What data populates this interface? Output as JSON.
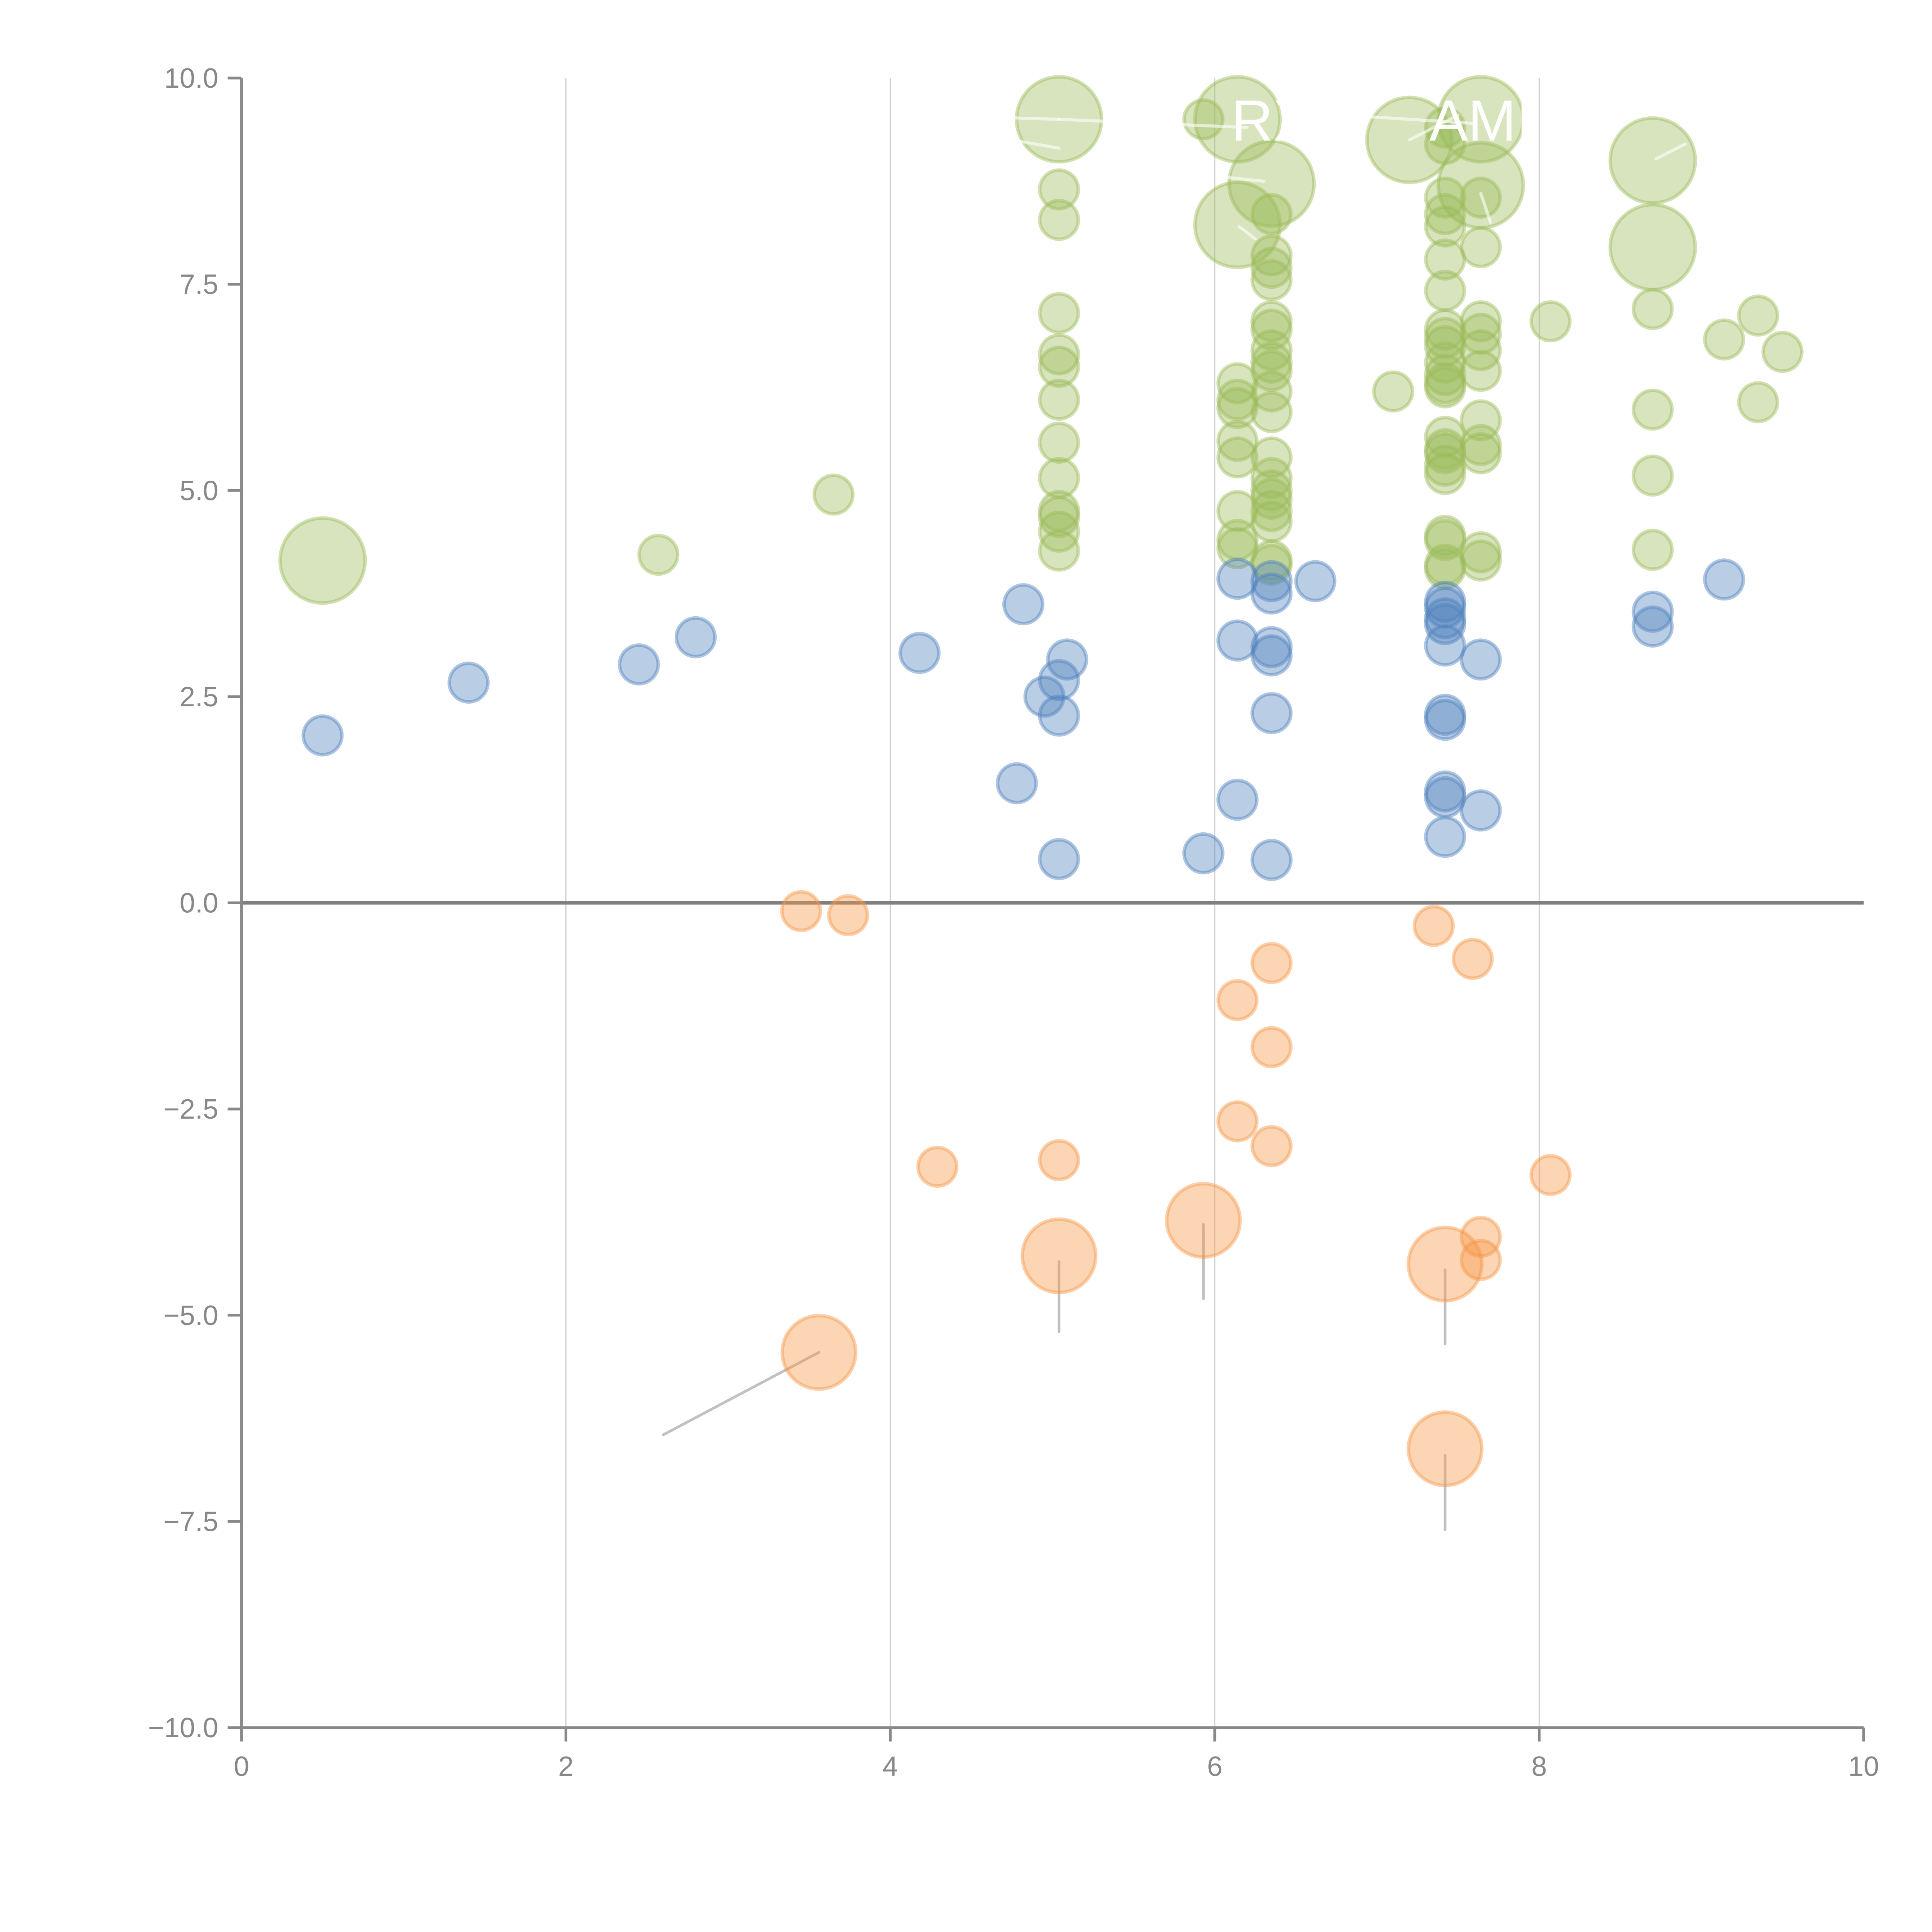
{
  "chart_data": {
    "type": "scatter",
    "title": "",
    "xlabel": "",
    "ylabel": "",
    "xlim": [
      0,
      10
    ],
    "ylim": [
      -10,
      10
    ],
    "grid": "vertical",
    "legend": "none",
    "x_ticks": [
      "0",
      "2",
      "4",
      "6",
      "8",
      "10"
    ],
    "y_ticks": [
      "−10.0",
      "−7.5",
      "−5.0",
      "−2.5",
      "0.0",
      "2.5",
      "5.0",
      "7.5",
      "10.0"
    ],
    "x_tick_values": [
      0,
      2,
      4,
      6,
      8,
      10
    ],
    "y_tick_values": [
      -10,
      -7.5,
      -5,
      -2.5,
      0,
      2.5,
      5,
      7.5,
      10
    ],
    "zero_line": true,
    "series": [
      {
        "name": "green",
        "color": "#9bbb59",
        "points": [
          {
            "x": 0.5,
            "y": 4.15,
            "size": 3
          },
          {
            "x": 2.57,
            "y": 4.22,
            "size": 1
          },
          {
            "x": 3.65,
            "y": 4.95,
            "size": 1
          },
          {
            "x": 5.04,
            "y": 9.5,
            "size": 3
          },
          {
            "x": 5.04,
            "y": 8.65,
            "size": 1
          },
          {
            "x": 5.04,
            "y": 8.28,
            "size": 1
          },
          {
            "x": 5.04,
            "y": 7.15,
            "size": 1
          },
          {
            "x": 5.04,
            "y": 6.65,
            "size": 1
          },
          {
            "x": 5.04,
            "y": 6.5,
            "size": 1
          },
          {
            "x": 5.04,
            "y": 6.1,
            "size": 1
          },
          {
            "x": 5.04,
            "y": 5.58,
            "size": 1
          },
          {
            "x": 5.04,
            "y": 5.15,
            "size": 1
          },
          {
            "x": 5.04,
            "y": 4.75,
            "size": 1
          },
          {
            "x": 5.04,
            "y": 4.68,
            "size": 1
          },
          {
            "x": 5.04,
            "y": 4.5,
            "size": 1
          },
          {
            "x": 5.04,
            "y": 4.27,
            "size": 1
          },
          {
            "x": 5.93,
            "y": 9.5,
            "size": 1
          },
          {
            "x": 6.14,
            "y": 9.5,
            "size": 3
          },
          {
            "x": 6.14,
            "y": 8.22,
            "size": 3
          },
          {
            "x": 6.14,
            "y": 6.3,
            "size": 1
          },
          {
            "x": 6.14,
            "y": 6.1,
            "size": 1
          },
          {
            "x": 6.14,
            "y": 6.0,
            "size": 1
          },
          {
            "x": 6.14,
            "y": 5.6,
            "size": 1
          },
          {
            "x": 6.14,
            "y": 5.4,
            "size": 1
          },
          {
            "x": 6.14,
            "y": 4.75,
            "size": 1
          },
          {
            "x": 6.14,
            "y": 4.4,
            "size": 1
          },
          {
            "x": 6.14,
            "y": 4.3,
            "size": 1
          },
          {
            "x": 6.35,
            "y": 8.72,
            "size": 3
          },
          {
            "x": 6.35,
            "y": 8.35,
            "size": 1
          },
          {
            "x": 6.35,
            "y": 7.85,
            "size": 1
          },
          {
            "x": 6.35,
            "y": 7.7,
            "size": 1
          },
          {
            "x": 6.35,
            "y": 7.55,
            "size": 1
          },
          {
            "x": 6.35,
            "y": 7.05,
            "size": 1
          },
          {
            "x": 6.35,
            "y": 6.95,
            "size": 1
          },
          {
            "x": 6.35,
            "y": 6.7,
            "size": 1
          },
          {
            "x": 6.35,
            "y": 6.55,
            "size": 1
          },
          {
            "x": 6.35,
            "y": 6.45,
            "size": 1
          },
          {
            "x": 6.35,
            "y": 6.2,
            "size": 1
          },
          {
            "x": 6.35,
            "y": 5.95,
            "size": 1
          },
          {
            "x": 6.35,
            "y": 5.4,
            "size": 1
          },
          {
            "x": 6.35,
            "y": 5.15,
            "size": 1
          },
          {
            "x": 6.35,
            "y": 5.0,
            "size": 1
          },
          {
            "x": 6.35,
            "y": 4.9,
            "size": 1
          },
          {
            "x": 6.35,
            "y": 4.75,
            "size": 1
          },
          {
            "x": 6.35,
            "y": 4.62,
            "size": 1
          },
          {
            "x": 6.35,
            "y": 4.15,
            "size": 1
          },
          {
            "x": 6.35,
            "y": 4.1,
            "size": 1
          },
          {
            "x": 7.1,
            "y": 6.2,
            "size": 1
          },
          {
            "x": 7.2,
            "y": 9.25,
            "size": 3
          },
          {
            "x": 7.42,
            "y": 9.4,
            "size": 1
          },
          {
            "x": 7.42,
            "y": 9.2,
            "size": 1
          },
          {
            "x": 7.42,
            "y": 8.55,
            "size": 1
          },
          {
            "x": 7.42,
            "y": 8.35,
            "size": 1
          },
          {
            "x": 7.42,
            "y": 8.2,
            "size": 1
          },
          {
            "x": 7.42,
            "y": 7.8,
            "size": 1
          },
          {
            "x": 7.42,
            "y": 7.42,
            "size": 1
          },
          {
            "x": 7.42,
            "y": 6.95,
            "size": 1
          },
          {
            "x": 7.42,
            "y": 6.85,
            "size": 1
          },
          {
            "x": 7.42,
            "y": 6.75,
            "size": 1
          },
          {
            "x": 7.42,
            "y": 6.55,
            "size": 1
          },
          {
            "x": 7.42,
            "y": 6.4,
            "size": 1
          },
          {
            "x": 7.42,
            "y": 6.3,
            "size": 1
          },
          {
            "x": 7.42,
            "y": 6.25,
            "size": 1
          },
          {
            "x": 7.42,
            "y": 5.65,
            "size": 1
          },
          {
            "x": 7.42,
            "y": 5.5,
            "size": 1
          },
          {
            "x": 7.42,
            "y": 5.45,
            "size": 1
          },
          {
            "x": 7.42,
            "y": 5.3,
            "size": 1
          },
          {
            "x": 7.42,
            "y": 5.2,
            "size": 1
          },
          {
            "x": 7.42,
            "y": 4.45,
            "size": 1
          },
          {
            "x": 7.42,
            "y": 4.4,
            "size": 1
          },
          {
            "x": 7.42,
            "y": 4.1,
            "size": 1
          },
          {
            "x": 7.42,
            "y": 4.05,
            "size": 1
          },
          {
            "x": 7.64,
            "y": 9.5,
            "size": 3
          },
          {
            "x": 7.64,
            "y": 8.7,
            "size": 3
          },
          {
            "x": 7.64,
            "y": 8.55,
            "size": 1
          },
          {
            "x": 7.64,
            "y": 7.95,
            "size": 1
          },
          {
            "x": 7.64,
            "y": 7.05,
            "size": 1
          },
          {
            "x": 7.64,
            "y": 6.9,
            "size": 1
          },
          {
            "x": 7.64,
            "y": 6.7,
            "size": 1
          },
          {
            "x": 7.64,
            "y": 6.45,
            "size": 1
          },
          {
            "x": 7.64,
            "y": 5.85,
            "size": 1
          },
          {
            "x": 7.64,
            "y": 5.55,
            "size": 1
          },
          {
            "x": 7.64,
            "y": 5.45,
            "size": 1
          },
          {
            "x": 7.64,
            "y": 4.25,
            "size": 1
          },
          {
            "x": 7.64,
            "y": 4.15,
            "size": 1
          },
          {
            "x": 8.07,
            "y": 7.05,
            "size": 1
          },
          {
            "x": 8.7,
            "y": 9.0,
            "size": 3
          },
          {
            "x": 8.7,
            "y": 7.95,
            "size": 3
          },
          {
            "x": 8.7,
            "y": 7.2,
            "size": 1
          },
          {
            "x": 8.7,
            "y": 5.98,
            "size": 1
          },
          {
            "x": 8.7,
            "y": 5.18,
            "size": 1
          },
          {
            "x": 8.7,
            "y": 4.28,
            "size": 1
          },
          {
            "x": 9.14,
            "y": 6.83,
            "size": 1
          },
          {
            "x": 9.35,
            "y": 7.12,
            "size": 1
          },
          {
            "x": 9.35,
            "y": 6.07,
            "size": 1
          },
          {
            "x": 9.5,
            "y": 6.68,
            "size": 1
          }
        ]
      },
      {
        "name": "blue",
        "color": "#4f81bd",
        "points": [
          {
            "x": 0.5,
            "y": 2.03,
            "size": 1
          },
          {
            "x": 1.4,
            "y": 2.67,
            "size": 1
          },
          {
            "x": 2.45,
            "y": 2.89,
            "size": 1
          },
          {
            "x": 2.8,
            "y": 3.22,
            "size": 1
          },
          {
            "x": 4.18,
            "y": 3.03,
            "size": 1
          },
          {
            "x": 4.78,
            "y": 1.45,
            "size": 1
          },
          {
            "x": 4.82,
            "y": 3.62,
            "size": 1
          },
          {
            "x": 4.95,
            "y": 2.5,
            "size": 1
          },
          {
            "x": 5.04,
            "y": 2.7,
            "size": 1
          },
          {
            "x": 5.04,
            "y": 2.27,
            "size": 1
          },
          {
            "x": 5.04,
            "y": 0.53,
            "size": 1
          },
          {
            "x": 5.09,
            "y": 2.95,
            "size": 1
          },
          {
            "x": 5.93,
            "y": 0.6,
            "size": 1
          },
          {
            "x": 6.14,
            "y": 3.93,
            "size": 1
          },
          {
            "x": 6.14,
            "y": 3.18,
            "size": 1
          },
          {
            "x": 6.14,
            "y": 1.25,
            "size": 1
          },
          {
            "x": 6.35,
            "y": 3.9,
            "size": 1
          },
          {
            "x": 6.35,
            "y": 3.75,
            "size": 1
          },
          {
            "x": 6.35,
            "y": 3.1,
            "size": 1
          },
          {
            "x": 6.35,
            "y": 3.0,
            "size": 1
          },
          {
            "x": 6.35,
            "y": 2.3,
            "size": 1
          },
          {
            "x": 6.35,
            "y": 0.52,
            "size": 1
          },
          {
            "x": 6.62,
            "y": 3.9,
            "size": 1
          },
          {
            "x": 7.42,
            "y": 3.65,
            "size": 1
          },
          {
            "x": 7.42,
            "y": 3.58,
            "size": 1
          },
          {
            "x": 7.42,
            "y": 3.45,
            "size": 1
          },
          {
            "x": 7.42,
            "y": 3.38,
            "size": 1
          },
          {
            "x": 7.42,
            "y": 3.12,
            "size": 1
          },
          {
            "x": 7.42,
            "y": 2.28,
            "size": 1
          },
          {
            "x": 7.42,
            "y": 2.22,
            "size": 1
          },
          {
            "x": 7.42,
            "y": 1.35,
            "size": 1
          },
          {
            "x": 7.42,
            "y": 1.28,
            "size": 1
          },
          {
            "x": 7.42,
            "y": 0.8,
            "size": 1
          },
          {
            "x": 7.64,
            "y": 2.95,
            "size": 1
          },
          {
            "x": 7.64,
            "y": 1.12,
            "size": 1
          },
          {
            "x": 8.7,
            "y": 3.53,
            "size": 1
          },
          {
            "x": 8.7,
            "y": 3.35,
            "size": 1
          },
          {
            "x": 9.14,
            "y": 3.92,
            "size": 1
          }
        ]
      },
      {
        "name": "orange",
        "color": "#f79646",
        "points": [
          {
            "x": 3.45,
            "y": -0.1,
            "size": 1
          },
          {
            "x": 3.74,
            "y": -0.15,
            "size": 1
          },
          {
            "x": 3.56,
            "y": -5.45,
            "size": 2
          },
          {
            "x": 4.29,
            "y": -3.2,
            "size": 1
          },
          {
            "x": 5.04,
            "y": -3.12,
            "size": 1
          },
          {
            "x": 5.04,
            "y": -4.28,
            "size": 2
          },
          {
            "x": 5.93,
            "y": -3.85,
            "size": 2
          },
          {
            "x": 6.14,
            "y": -1.18,
            "size": 1
          },
          {
            "x": 6.14,
            "y": -2.65,
            "size": 1
          },
          {
            "x": 6.35,
            "y": -0.73,
            "size": 1
          },
          {
            "x": 6.35,
            "y": -1.75,
            "size": 1
          },
          {
            "x": 6.35,
            "y": -2.95,
            "size": 1
          },
          {
            "x": 7.35,
            "y": -0.28,
            "size": 1
          },
          {
            "x": 7.42,
            "y": -4.38,
            "size": 2
          },
          {
            "x": 7.42,
            "y": -6.62,
            "size": 2
          },
          {
            "x": 7.59,
            "y": -0.68,
            "size": 1
          },
          {
            "x": 7.64,
            "y": -4.05,
            "size": 1
          },
          {
            "x": 7.64,
            "y": -4.33,
            "size": 1
          },
          {
            "x": 8.07,
            "y": -3.3,
            "size": 1
          }
        ]
      }
    ],
    "annotations": [
      {
        "text": "RX",
        "x": 5.93,
        "y": 9.5,
        "text_x": 6.35,
        "text_y": 9.5,
        "color": "#ffffff"
      },
      {
        "text": "AMI",
        "x": 7.2,
        "y": 9.25,
        "text_x": 7.64,
        "text_y": 9.5,
        "color": "#ffffff"
      }
    ],
    "leaders": [
      {
        "from": [
          3.56,
          -5.45
        ],
        "to": [
          2.6,
          -6.45
        ]
      },
      {
        "from": [
          5.04,
          -4.35
        ],
        "to": [
          5.04,
          -5.2
        ]
      },
      {
        "from": [
          5.93,
          -3.9
        ],
        "to": [
          5.93,
          -4.8
        ]
      },
      {
        "from": [
          7.42,
          -4.45
        ],
        "to": [
          7.42,
          -5.35
        ]
      },
      {
        "from": [
          7.42,
          -6.7
        ],
        "to": [
          7.42,
          -7.6
        ]
      }
    ],
    "white_leaders": [
      {
        "from": [
          5.04,
          9.5
        ],
        "to": [
          4.2,
          9.55
        ]
      },
      {
        "from": [
          5.04,
          9.5
        ],
        "to": [
          6.2,
          9.4
        ]
      },
      {
        "from": [
          5.04,
          9.15
        ],
        "to": [
          4.6,
          9.3
        ]
      },
      {
        "from": [
          6.3,
          8.75
        ],
        "to": [
          6.05,
          8.8
        ]
      },
      {
        "from": [
          6.25,
          8.05
        ],
        "to": [
          6.15,
          8.2
        ]
      },
      {
        "from": [
          7.2,
          9.25
        ],
        "to": [
          7.5,
          9.55
        ]
      },
      {
        "from": [
          7.6,
          9.45
        ],
        "to": [
          6.8,
          9.55
        ]
      },
      {
        "from": [
          7.64,
          8.6
        ],
        "to": [
          7.7,
          8.25
        ]
      },
      {
        "from": [
          8.72,
          9.02
        ],
        "to": [
          8.9,
          9.2
        ]
      }
    ]
  }
}
